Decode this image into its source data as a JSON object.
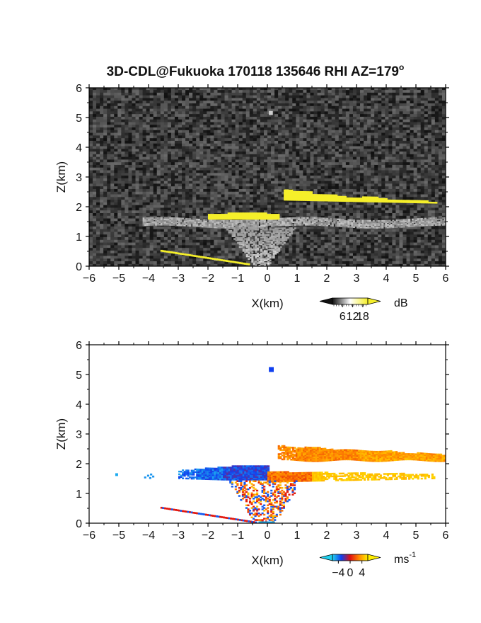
{
  "title": "3D-CDL@Fukuoka 170118 135646 RHI AZ=179",
  "title_superscript": "o",
  "chart_data": [
    {
      "type": "heatmap",
      "quantity": "reflectivity",
      "xlabel": "X(km)",
      "ylabel": "Z(km)",
      "xlim": [
        -6,
        6
      ],
      "ylim": [
        0,
        6
      ],
      "xticks": [
        "-6",
        "-5",
        "-4",
        "-3",
        "-2",
        "-1",
        "0",
        "1",
        "2",
        "3",
        "4",
        "5",
        "6"
      ],
      "yticks": [
        "0",
        "1",
        "2",
        "3",
        "4",
        "5",
        "6"
      ],
      "grid": false,
      "colorbar": {
        "unit": "dB",
        "ticks": [
          "6",
          "12",
          "18"
        ],
        "range": [
          0,
          21
        ],
        "colors": [
          "#111111",
          "#ffffff",
          "#f5ef2a"
        ]
      },
      "background": "noise (dark gray, ~0-6 dB)",
      "features": [
        {
          "name": "upper yellow cloud layer",
          "x": [
            0.55,
            6.0
          ],
          "z": [
            2.2,
            2.6
          ],
          "value_db": 18
        },
        {
          "name": "mid yellow cloud layer",
          "x": [
            -2.0,
            0.4
          ],
          "z": [
            1.55,
            1.8
          ],
          "value_db": 18
        },
        {
          "name": "gray boundary layer",
          "x": [
            -4.2,
            6.0
          ],
          "z": [
            1.3,
            1.6
          ],
          "value_db": 10
        },
        {
          "name": "ground clutter cone",
          "x": [
            -1.5,
            1.0
          ],
          "z": [
            0.0,
            1.3
          ],
          "value_db": 9
        },
        {
          "name": "low slanted yellow echo",
          "x": [
            -3.6,
            -0.6
          ],
          "z": [
            0.0,
            0.55
          ],
          "value_db": 18
        },
        {
          "name": "isolated echo",
          "x": [
            0.1
          ],
          "z": [
            5.2
          ],
          "value_db": 12
        }
      ]
    },
    {
      "type": "heatmap",
      "quantity": "doppler velocity",
      "xlabel": "X(km)",
      "ylabel": "Z(km)",
      "xlim": [
        -6,
        6
      ],
      "ylim": [
        0,
        6
      ],
      "xticks": [
        "-6",
        "-5",
        "-4",
        "-3",
        "-2",
        "-1",
        "0",
        "1",
        "2",
        "3",
        "4",
        "5",
        "6"
      ],
      "yticks": [
        "0",
        "1",
        "2",
        "3",
        "4",
        "5",
        "6"
      ],
      "grid": false,
      "colorbar": {
        "unit": "ms",
        "unit_superscript": "-1",
        "ticks": [
          "-4",
          "0",
          "4"
        ],
        "range": [
          -6,
          6
        ],
        "colors": [
          "#22d0ee",
          "#1040f0",
          "#e01010",
          "#ff8800",
          "#ffee00"
        ]
      },
      "features": [
        {
          "name": "upper layer",
          "x": [
            0.3,
            6.0
          ],
          "z": [
            2.1,
            2.6
          ],
          "value_ms": 3.0
        },
        {
          "name": "mid layer (negative)",
          "x": [
            -3.0,
            0.0
          ],
          "z": [
            1.4,
            1.9
          ],
          "value_ms": -3.0
        },
        {
          "name": "mid layer (positive)",
          "x": [
            0.0,
            5.6
          ],
          "z": [
            1.3,
            1.75
          ],
          "value_ms": 4.0
        },
        {
          "name": "mixed lower region",
          "x": [
            -1.4,
            1.0
          ],
          "z": [
            0.0,
            1.5
          ],
          "value_ms": 0.5
        },
        {
          "name": "low slanted echo",
          "x": [
            -3.6,
            -1.2
          ],
          "z": [
            0.0,
            0.55
          ],
          "value_ms": -0.5
        },
        {
          "name": "isolated echo",
          "x": [
            0.1
          ],
          "z": [
            5.2
          ],
          "value_ms": -3.0
        },
        {
          "name": "far-left scatter",
          "x": [
            -5.1,
            -3.9
          ],
          "z": [
            1.5,
            1.7
          ],
          "value_ms": -5.0
        }
      ]
    }
  ]
}
